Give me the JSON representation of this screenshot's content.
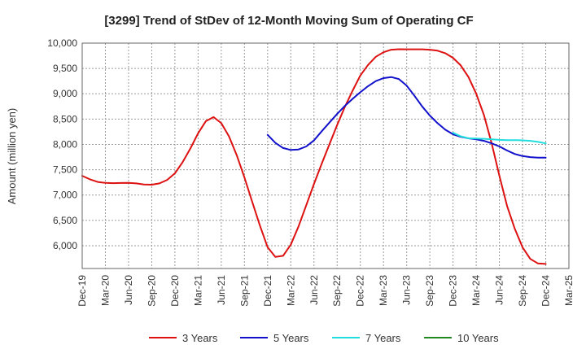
{
  "chart_data": {
    "type": "line",
    "title": "[3299]  Trend of StDev of 12-Month Moving Sum of Operating CF",
    "xlabel": "",
    "ylabel": "Amount (million yen)",
    "ylim": [
      5550,
      10000
    ],
    "yticks": [
      6000,
      6500,
      7000,
      7500,
      8000,
      8500,
      9000,
      9500,
      10000
    ],
    "ytick_labels": [
      "6,000",
      "6,500",
      "7,000",
      "7,500",
      "8,000",
      "8,500",
      "9,000",
      "9,500",
      "10,000"
    ],
    "x_range_months": [
      0,
      63
    ],
    "x_ticks": [
      0,
      3,
      6,
      9,
      12,
      15,
      18,
      21,
      24,
      27,
      30,
      33,
      36,
      39,
      42,
      45,
      48,
      51,
      54,
      57,
      60,
      63
    ],
    "x_tick_labels": [
      "Dec-19",
      "Mar-20",
      "Jun-20",
      "Sep-20",
      "Dec-20",
      "Mar-21",
      "Jun-21",
      "Sep-21",
      "Dec-21",
      "Mar-22",
      "Jun-22",
      "Sep-22",
      "Dec-22",
      "Mar-23",
      "Jun-23",
      "Sep-23",
      "Dec-23",
      "Mar-24",
      "Jun-24",
      "Sep-24",
      "Dec-24",
      "Mar-25"
    ],
    "grid": true,
    "legend_position": "bottom",
    "series": [
      {
        "name": "3 Years",
        "color": "#dd1111",
        "x": [
          0,
          1,
          2,
          3,
          4,
          5,
          6,
          7,
          8,
          9,
          10,
          11,
          12,
          13,
          14,
          15,
          16,
          17,
          18,
          19,
          20,
          21,
          22,
          23,
          24,
          25,
          26,
          27,
          28,
          29,
          30,
          31,
          32,
          33,
          34,
          35,
          36,
          37,
          38,
          39,
          40,
          41,
          42,
          43,
          44,
          45,
          46,
          47,
          48,
          49,
          50,
          51,
          52,
          53,
          54,
          55,
          56,
          57,
          58,
          59,
          60
        ],
        "values": [
          7380,
          7310,
          7260,
          7240,
          7235,
          7238,
          7240,
          7230,
          7210,
          7205,
          7230,
          7300,
          7430,
          7650,
          7920,
          8220,
          8460,
          8540,
          8420,
          8160,
          7790,
          7350,
          6870,
          6400,
          5970,
          5780,
          5800,
          6020,
          6380,
          6800,
          7220,
          7620,
          8000,
          8380,
          8740,
          9060,
          9360,
          9570,
          9730,
          9820,
          9870,
          9880,
          9878,
          9878,
          9878,
          9870,
          9850,
          9800,
          9710,
          9560,
          9330,
          9000,
          8580,
          8020,
          7380,
          6780,
          6330,
          5970,
          5740,
          5650,
          5640
        ]
      },
      {
        "name": "5 Years",
        "color": "#1111cc",
        "x": [
          24,
          25,
          26,
          27,
          28,
          29,
          30,
          31,
          32,
          33,
          34,
          35,
          36,
          37,
          38,
          39,
          40,
          41,
          42,
          43,
          44,
          45,
          46,
          47,
          48,
          49,
          50,
          51,
          52,
          53,
          54,
          55,
          56,
          57,
          58,
          59,
          60
        ],
        "values": [
          8190,
          8030,
          7930,
          7890,
          7900,
          7960,
          8080,
          8260,
          8430,
          8600,
          8760,
          8900,
          9030,
          9150,
          9250,
          9310,
          9330,
          9290,
          9160,
          8960,
          8750,
          8570,
          8420,
          8290,
          8200,
          8150,
          8120,
          8100,
          8070,
          8020,
          7960,
          7880,
          7810,
          7770,
          7750,
          7740,
          7740
        ]
      },
      {
        "name": "7 Years",
        "color": "#22dddd",
        "x": [
          48,
          49,
          50,
          51,
          52,
          53,
          54,
          55,
          56,
          57,
          58,
          59,
          60
        ],
        "values": [
          8230,
          8160,
          8120,
          8115,
          8110,
          8100,
          8090,
          8085,
          8085,
          8080,
          8070,
          8050,
          8020
        ]
      },
      {
        "name": "10 Years",
        "color": "#228822",
        "x": [],
        "values": []
      }
    ]
  }
}
